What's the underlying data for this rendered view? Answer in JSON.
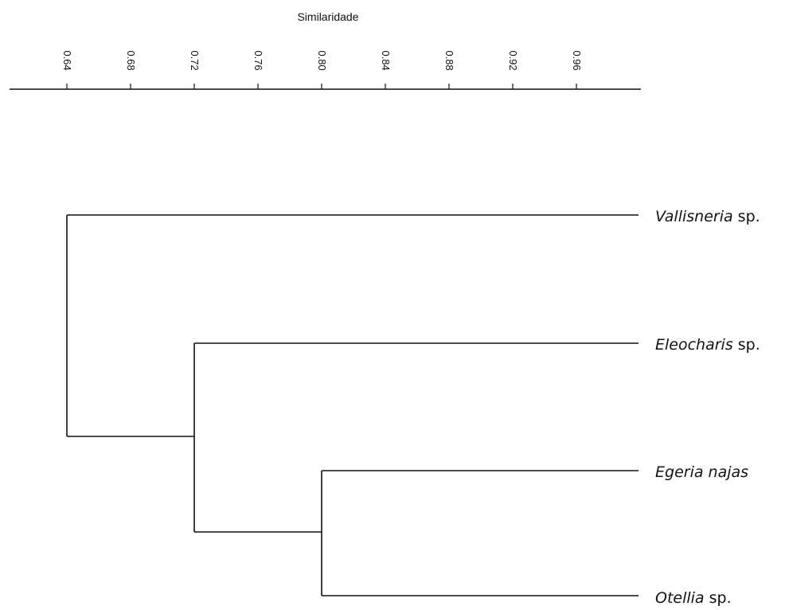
{
  "chart_data": {
    "type": "dendrogram",
    "axis": {
      "title": "Similaridade",
      "ticks": [
        "0.64",
        "0.68",
        "0.72",
        "0.76",
        "0.80",
        "0.84",
        "0.88",
        "0.92",
        "0.96"
      ],
      "range": [
        0.6,
        1.0
      ]
    },
    "leaves": [
      {
        "genus": "Vallisneria",
        "suffix": " sp."
      },
      {
        "genus": "Eleocharis",
        "suffix": " sp."
      },
      {
        "genus": "Egeria najas",
        "suffix": ""
      },
      {
        "genus": "Otellia",
        "suffix": " sp."
      }
    ],
    "merges": [
      {
        "left": "Egeria najas",
        "right": "Otellia",
        "similarity": 0.8
      },
      {
        "left": "Eleocharis",
        "right": "Egeria najas + Otellia",
        "similarity": 0.72
      },
      {
        "left": "Vallisneria",
        "right": "Eleocharis + Egeria najas + Otellia",
        "similarity": 0.64
      }
    ]
  }
}
